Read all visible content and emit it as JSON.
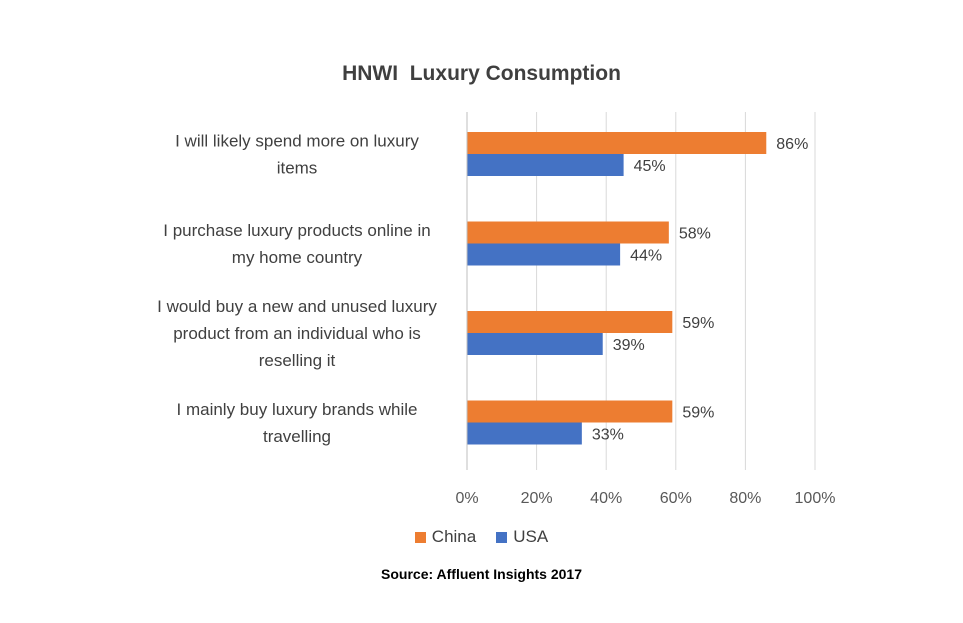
{
  "chart_data": {
    "type": "bar",
    "orientation": "horizontal",
    "title": "HNWI  Luxury Consumption",
    "source": "Source: Affluent Insights 2017",
    "categories": [
      [
        "I will likely spend more on luxury",
        "items"
      ],
      [
        "I purchase luxury products online in",
        "my home country"
      ],
      [
        "I would buy a new and unused luxury",
        "product from an individual who is",
        "reselling it"
      ],
      [
        "I mainly buy luxury brands while",
        "travelling"
      ]
    ],
    "series": [
      {
        "name": "China",
        "color": "#ed7d31",
        "values": [
          86,
          58,
          59,
          59
        ],
        "labels": [
          "86%",
          "58%",
          "59%",
          "59%"
        ]
      },
      {
        "name": "USA",
        "color": "#4472c4",
        "values": [
          45,
          44,
          39,
          33
        ],
        "labels": [
          "45%",
          "44%",
          "39%",
          "33%"
        ]
      }
    ],
    "xlim": [
      0,
      100
    ],
    "xticks": [
      "0%",
      "20%",
      "40%",
      "60%",
      "80%",
      "100%"
    ],
    "xtick_values": [
      0,
      20,
      40,
      60,
      80,
      100
    ],
    "grid": true,
    "legend": "bottom",
    "gridline_color": "#d9d9d9"
  }
}
